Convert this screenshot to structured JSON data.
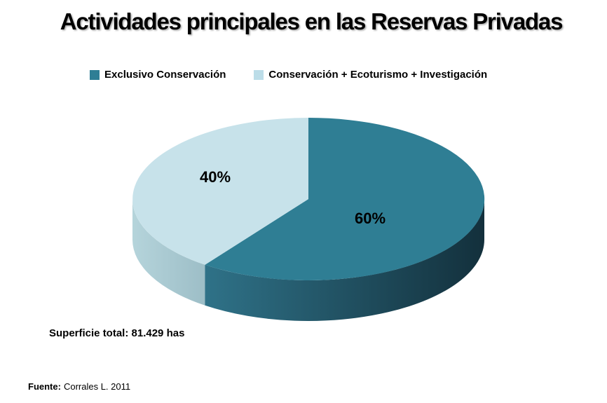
{
  "title": "Actividades principales en las Reservas Privadas",
  "legend": [
    {
      "label": "Exclusivo Conservación",
      "color": "#2E7E95"
    },
    {
      "label": "Conservación + Ecoturismo + Investigación",
      "color": "#BCDDE8"
    }
  ],
  "chart_data": {
    "type": "pie",
    "style": "3d",
    "title": "Actividades principales en las Reservas Privadas",
    "labels": [
      "Exclusivo Conservación",
      "Conservación + Ecoturismo + Investigación"
    ],
    "values": [
      60,
      40
    ],
    "value_labels": [
      "60%",
      "40%"
    ],
    "colors": [
      "#2F7E94",
      "#C7E2EA"
    ],
    "side_gradients": [
      [
        "#2F7288",
        "#13303C"
      ],
      [
        "#B5D4DB",
        "#9DBEC7"
      ]
    ],
    "start_angle_deg": 0,
    "direction": "clockwise",
    "legend_position": "top"
  },
  "annotations": {
    "superficie_total": "Superficie total: 81.429 has",
    "fuente_label": "Fuente:",
    "fuente_value": "Corrales L. 2011"
  }
}
